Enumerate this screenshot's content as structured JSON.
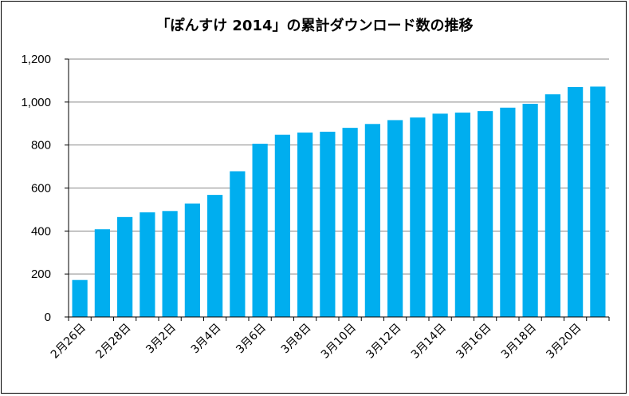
{
  "chart_data": {
    "type": "bar",
    "title": "「ぽんすけ 2014」の累計ダウンロード数の推移",
    "xlabel": "",
    "ylabel": "",
    "ylim": [
      0,
      1200
    ],
    "yticks": [
      "0",
      "200",
      "400",
      "600",
      "800",
      "1,000",
      "1,200"
    ],
    "ytick_values": [
      0,
      200,
      400,
      600,
      800,
      1000,
      1200
    ],
    "grid": "horizontal",
    "legend": "none",
    "bar_color": "#00AEEF",
    "categories": [
      "2月26日",
      "2月27日",
      "2月28日",
      "3月1日",
      "3月2日",
      "3月3日",
      "3月4日",
      "3月5日",
      "3月6日",
      "3月7日",
      "3月8日",
      "3月9日",
      "3月10日",
      "3月11日",
      "3月12日",
      "3月13日",
      "3月14日",
      "3月15日",
      "3月16日",
      "3月17日",
      "3月18日",
      "3月19日",
      "3月20日",
      "3月21日"
    ],
    "shown_x_labels": [
      "2月26日",
      "2月28日",
      "3月2日",
      "3月4日",
      "3月6日",
      "3月8日",
      "3月10日",
      "3月12日",
      "3月14日",
      "3月16日",
      "3月18日",
      "3月20日"
    ],
    "values": [
      172,
      408,
      465,
      487,
      493,
      528,
      568,
      678,
      806,
      848,
      858,
      862,
      880,
      898,
      916,
      928,
      946,
      951,
      958,
      974,
      992,
      1036,
      1070,
      1072
    ]
  }
}
